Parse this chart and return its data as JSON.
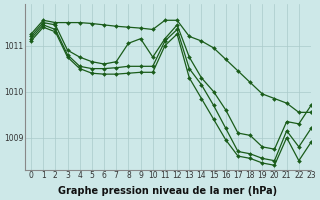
{
  "bg_color": "#cde8e8",
  "line_color": "#1a5c1a",
  "grid_color": "#aacaca",
  "xlabel": "Graphe pression niveau de la mer (hPa)",
  "xlabel_fontsize": 7,
  "tick_fontsize": 5.5,
  "xlim": [
    -0.5,
    23
  ],
  "ylim": [
    1008.3,
    1011.9
  ],
  "yticks": [
    1009,
    1010,
    1011
  ],
  "xticks": [
    0,
    1,
    2,
    3,
    4,
    5,
    6,
    7,
    8,
    9,
    10,
    11,
    12,
    13,
    14,
    15,
    16,
    17,
    18,
    19,
    20,
    21,
    22,
    23
  ],
  "series": [
    {
      "x": [
        0,
        1,
        2,
        3,
        4,
        5,
        6,
        7,
        8,
        9,
        10,
        11,
        12,
        13,
        14,
        15,
        16,
        17,
        18,
        19,
        20,
        21,
        22,
        23
      ],
      "y": [
        1011.25,
        1011.55,
        1011.5,
        1011.5,
        1011.5,
        1011.48,
        1011.45,
        1011.42,
        1011.4,
        1011.38,
        1011.35,
        1011.55,
        1011.55,
        1011.2,
        1011.1,
        1010.95,
        1010.7,
        1010.45,
        1010.2,
        1009.95,
        1009.85,
        1009.75,
        1009.55,
        1009.55
      ]
    },
    {
      "x": [
        0,
        1,
        2,
        3,
        4,
        5,
        6,
        7,
        8,
        9,
        10,
        11,
        12,
        13,
        14,
        15,
        16,
        17,
        18,
        19,
        20,
        21,
        22,
        23
      ],
      "y": [
        1011.2,
        1011.5,
        1011.45,
        1010.9,
        1010.75,
        1010.65,
        1010.6,
        1010.65,
        1011.05,
        1011.15,
        1010.75,
        1011.15,
        1011.45,
        1010.75,
        1010.3,
        1010.0,
        1009.6,
        1009.1,
        1009.05,
        1008.8,
        1008.75,
        1009.35,
        1009.3,
        1009.7
      ]
    },
    {
      "x": [
        0,
        1,
        2,
        3,
        4,
        5,
        6,
        7,
        8,
        9,
        10,
        11,
        12,
        13,
        14,
        15,
        16,
        17,
        18,
        19,
        20,
        21,
        22,
        23
      ],
      "y": [
        1011.15,
        1011.45,
        1011.35,
        1010.8,
        1010.55,
        1010.5,
        1010.5,
        1010.52,
        1010.55,
        1010.55,
        1010.55,
        1011.1,
        1011.35,
        1010.5,
        1010.15,
        1009.7,
        1009.2,
        1008.7,
        1008.65,
        1008.55,
        1008.5,
        1009.15,
        1008.8,
        1009.2
      ]
    },
    {
      "x": [
        0,
        1,
        2,
        3,
        4,
        5,
        6,
        7,
        8,
        9,
        10,
        11,
        12,
        13,
        14,
        15,
        16,
        17,
        18,
        19,
        20,
        21,
        22,
        23
      ],
      "y": [
        1011.1,
        1011.4,
        1011.3,
        1010.75,
        1010.5,
        1010.4,
        1010.38,
        1010.38,
        1010.4,
        1010.42,
        1010.42,
        1011.0,
        1011.25,
        1010.3,
        1009.85,
        1009.4,
        1008.95,
        1008.6,
        1008.55,
        1008.45,
        1008.4,
        1009.0,
        1008.5,
        1008.9
      ]
    }
  ]
}
